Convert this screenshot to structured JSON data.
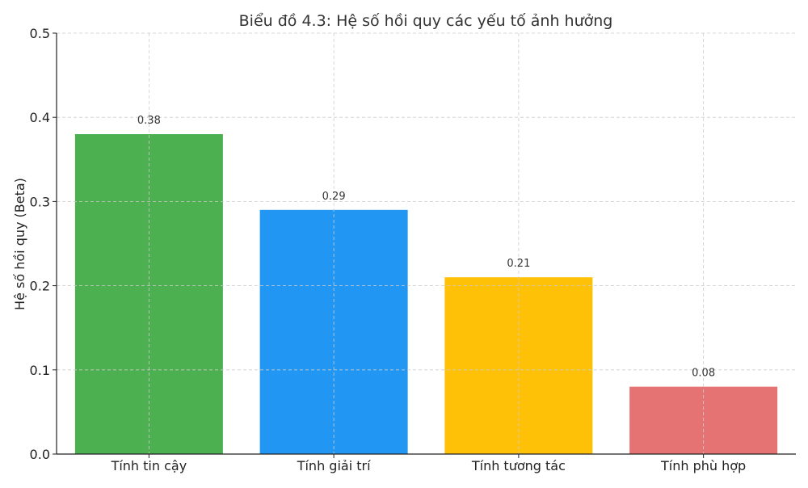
{
  "chart_data": {
    "type": "bar",
    "title": "Biểu đồ 4.3: Hệ số hồi quy các yếu tố ảnh hưởng",
    "xlabel": "",
    "ylabel": "Hệ số hồi quy (Beta)",
    "categories": [
      "Tính tin cậy",
      "Tính giải trí",
      "Tính tương tác",
      "Tính phù hợp"
    ],
    "values": [
      0.38,
      0.29,
      0.21,
      0.08
    ],
    "value_labels": [
      "0.38",
      "0.29",
      "0.21",
      "0.08"
    ],
    "colors": [
      "#4caf50",
      "#2196f3",
      "#ffc107",
      "#e57373"
    ],
    "ylim": [
      0,
      0.5
    ],
    "yticks": [
      0.0,
      0.1,
      0.2,
      0.3,
      0.4,
      0.5
    ],
    "ytick_labels": [
      "0.0",
      "0.1",
      "0.2",
      "0.3",
      "0.4",
      "0.5"
    ],
    "grid": true,
    "legend": "none"
  }
}
